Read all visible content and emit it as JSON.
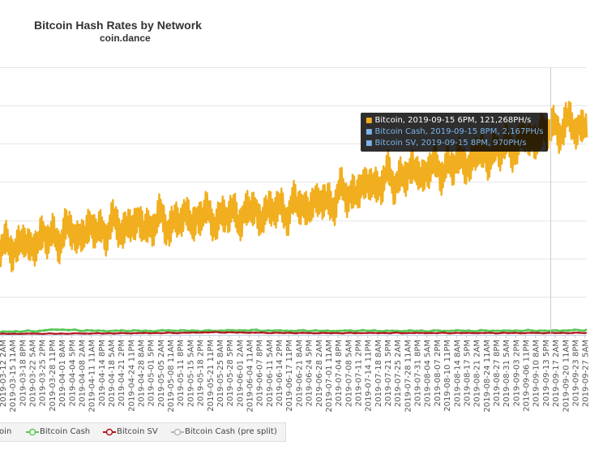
{
  "header": {
    "title": "Bitcoin Hash Rates by Network",
    "subtitle": "coin.dance"
  },
  "tooltip": {
    "rows": [
      {
        "text": "Bitcoin, 2019-09-15 6PM, 121,268PH/s",
        "color": "#ffffff"
      },
      {
        "text": "Bitcoin Cash, 2019-09-15 8PM, 2,167PH/s",
        "color": "#7cb5ec"
      },
      {
        "text": "Bitcoin SV, 2019-09-15 8PM, 970PH/s",
        "color": "#7cb5ec"
      }
    ]
  },
  "legend": {
    "items": [
      {
        "label": "Bitcoin",
        "color": "#f1ae1e"
      },
      {
        "label": "Bitcoin Cash",
        "color": "#55c655"
      },
      {
        "label": "Bitcoin SV",
        "color": "#b0141c"
      },
      {
        "label": "Bitcoin Cash (pre split)",
        "color": "#b5b5b5"
      }
    ]
  },
  "chart_data": {
    "type": "line",
    "title": "Bitcoin Hash Rates by Network",
    "subtitle": "coin.dance",
    "xlabel": "",
    "ylabel": "",
    "unit": "PH/s",
    "ylim": [
      0,
      140000
    ],
    "x_tick_labels": [
      "2019-03-12 2AM",
      "2019-03-15 11AM",
      "2019-03-18 8PM",
      "2019-03-22 5AM",
      "2019-03-25 2PM",
      "2019-03-28 11PM",
      "2019-04-01 8AM",
      "2019-04-04 5PM",
      "2019-04-08 2AM",
      "2019-04-11 11AM",
      "2019-04-14 8PM",
      "2019-04-18 5AM",
      "2019-04-21 2PM",
      "2019-04-24 11PM",
      "2019-04-28 8AM",
      "2019-05-01 5PM",
      "2019-05-05 2AM",
      "2019-05-08 11AM",
      "2019-05-11 8PM",
      "2019-05-15 5AM",
      "2019-05-18 2PM",
      "2019-05-21 11PM",
      "2019-05-25 8AM",
      "2019-05-28 5PM",
      "2019-06-01 2AM",
      "2019-06-04 11AM",
      "2019-06-07 8PM",
      "2019-06-11 5AM",
      "2019-06-14 2PM",
      "2019-06-17 11PM",
      "2019-06-21 8AM",
      "2019-06-24 5PM",
      "2019-06-28 2AM",
      "2019-07-01 11AM",
      "2019-07-04 8PM",
      "2019-07-08 5AM",
      "2019-07-11 2PM",
      "2019-07-14 11PM",
      "2019-07-18 8AM",
      "2019-07-21 5PM",
      "2019-07-25 2AM",
      "2019-07-28 11AM",
      "2019-07-31 8PM",
      "2019-08-04 5AM",
      "2019-08-07 2PM",
      "2019-08-10 11PM",
      "2019-08-14 8AM",
      "2019-08-17 5PM",
      "2019-08-21 2AM",
      "2019-08-24 11AM",
      "2019-08-27 8PM",
      "2019-08-31 5AM",
      "2019-09-03 2PM",
      "2019-09-06 11PM",
      "2019-09-10 8AM",
      "2019-09-13 5PM",
      "2019-09-17 2AM",
      "2019-09-20 11AM",
      "2019-09-23 8PM",
      "2019-09-27 5AM"
    ],
    "series": [
      {
        "name": "Bitcoin",
        "color": "#f1ae1e",
        "values": [
          46000,
          47500,
          45500,
          48000,
          49500,
          51000,
          52000,
          53500,
          53000,
          54500,
          55000,
          56000,
          56500,
          57500,
          57000,
          58000,
          59000,
          58500,
          60000,
          61000,
          61500,
          62000,
          61000,
          62500,
          63000,
          64000,
          63500,
          64500,
          65500,
          66000,
          67000,
          68000,
          69000,
          70000,
          72000,
          74000,
          76000,
          78000,
          80000,
          81000,
          82000,
          84000,
          85500,
          86000,
          87000,
          88500,
          89500,
          91000,
          93000,
          94500,
          96000,
          98000,
          100000,
          102000,
          104000,
          106000,
          109000,
          110000,
          108000,
          112000
        ],
        "noise": 11000
      },
      {
        "name": "Bitcoin Cash",
        "color": "#55c655",
        "values": [
          1500,
          1700,
          1800,
          1900,
          2000,
          2600,
          2800,
          2500,
          2300,
          2200,
          2100,
          2000,
          2100,
          2200,
          2100,
          2000,
          2100,
          2300,
          2200,
          2200,
          2100,
          2100,
          2200,
          2300,
          2300,
          2400,
          2300,
          2200,
          2200,
          2100,
          2100,
          2200,
          2100,
          2000,
          2100,
          2100,
          2200,
          2200,
          2100,
          2000,
          2000,
          2100,
          2100,
          2000,
          2100,
          2100,
          2200,
          2100,
          2100,
          2200,
          2100,
          2100,
          2200,
          2200,
          2200,
          2100,
          2200,
          2300,
          2400,
          2500
        ],
        "noise": 500
      },
      {
        "name": "Bitcoin SV",
        "color": "#b0141c",
        "values": [
          500,
          500,
          550,
          600,
          600,
          600,
          600,
          650,
          700,
          700,
          750,
          750,
          800,
          850,
          900,
          900,
          950,
          1000,
          1000,
          1100,
          1200,
          1300,
          1300,
          1250,
          1200,
          1150,
          1100,
          1050,
          1000,
          1000,
          950,
          950,
          900,
          900,
          900,
          900,
          950,
          950,
          950,
          950,
          950,
          950,
          950,
          950,
          950,
          950,
          950,
          950,
          950,
          950,
          950,
          950,
          970,
          970,
          970,
          970,
          980,
          990,
          1000,
          1000
        ],
        "noise": 300
      },
      {
        "name": "Bitcoin Cash (pre split)",
        "color": "#b5b5b5",
        "values": []
      }
    ],
    "highlight": {
      "x": "2019-09-15 6PM",
      "value": 121268
    },
    "grid": true,
    "legend_position": "bottom-left"
  }
}
